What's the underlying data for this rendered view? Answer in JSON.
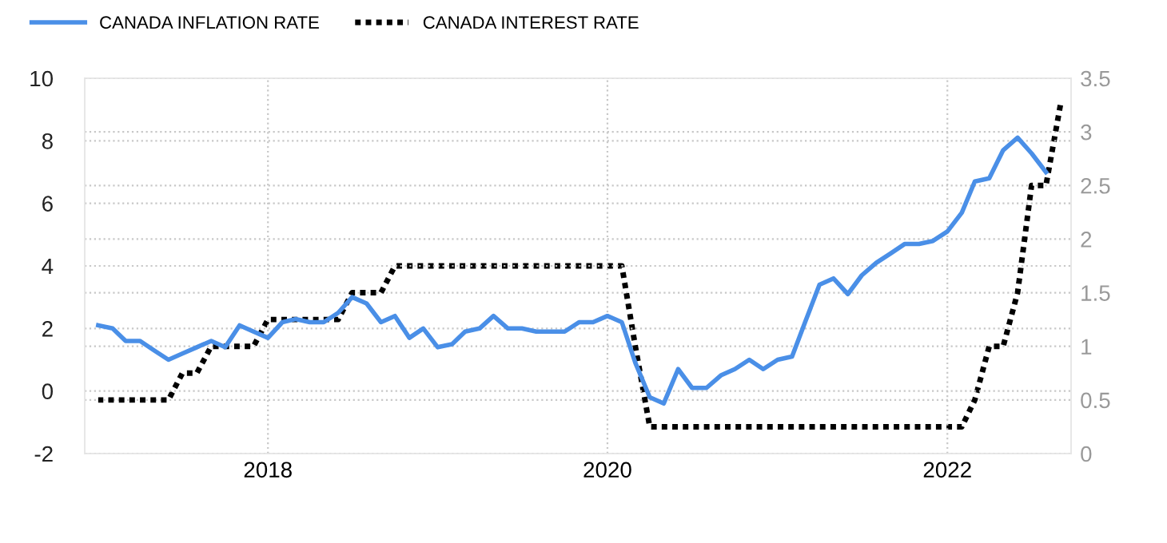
{
  "chart_data": {
    "type": "line",
    "xlim": [
      "2016-12-03",
      "2022-09-24"
    ],
    "xticks": [
      {
        "value": "2018-01-01",
        "label": "2018"
      },
      {
        "value": "2020-01-01",
        "label": "2020"
      },
      {
        "value": "2022-01-01",
        "label": "2022"
      }
    ],
    "ylim": [
      -2,
      10
    ],
    "yticks": [
      -2,
      0,
      2,
      4,
      6,
      8,
      10
    ],
    "y2lim": [
      0,
      3.5
    ],
    "y2ticks": [
      0,
      0.5,
      1,
      1.5,
      2,
      2.5,
      3,
      3.5
    ],
    "grid": true,
    "legend": "top left",
    "marker": "none",
    "series": [
      {
        "name": "CANADA INFLATION RATE",
        "color": "#4a8fe7",
        "line_style": "solid",
        "x": [
          "2017-01",
          "2017-02",
          "2017-03",
          "2017-04",
          "2017-05",
          "2017-06",
          "2017-07",
          "2017-08",
          "2017-09",
          "2017-10",
          "2017-11",
          "2017-12",
          "2018-01",
          "2018-02",
          "2018-03",
          "2018-04",
          "2018-05",
          "2018-06",
          "2018-07",
          "2018-08",
          "2018-09",
          "2018-10",
          "2018-11",
          "2018-12",
          "2019-01",
          "2019-02",
          "2019-03",
          "2019-04",
          "2019-05",
          "2019-06",
          "2019-07",
          "2019-08",
          "2019-09",
          "2019-10",
          "2019-11",
          "2019-12",
          "2020-01",
          "2020-02",
          "2020-03",
          "2020-04",
          "2020-05",
          "2020-06",
          "2020-07",
          "2020-08",
          "2020-09",
          "2020-10",
          "2020-11",
          "2020-12",
          "2021-01",
          "2021-02",
          "2021-03",
          "2021-04",
          "2021-05",
          "2021-06",
          "2021-07",
          "2021-08",
          "2021-09",
          "2021-10",
          "2021-11",
          "2021-12",
          "2022-01",
          "2022-02",
          "2022-03",
          "2022-04",
          "2022-05",
          "2022-06",
          "2022-07",
          "2022-08"
        ],
        "values": [
          2.1,
          2.0,
          1.6,
          1.6,
          1.3,
          1.0,
          1.2,
          1.4,
          1.6,
          1.4,
          2.1,
          1.9,
          1.7,
          2.2,
          2.3,
          2.2,
          2.2,
          2.5,
          3.0,
          2.8,
          2.2,
          2.4,
          1.7,
          2.0,
          1.4,
          1.5,
          1.9,
          2.0,
          2.4,
          2.0,
          2.0,
          1.9,
          1.9,
          1.9,
          2.2,
          2.2,
          2.4,
          2.2,
          0.9,
          -0.2,
          -0.4,
          0.7,
          0.1,
          0.1,
          0.5,
          0.7,
          1.0,
          0.7,
          1.0,
          1.1,
          2.2,
          3.4,
          3.6,
          3.1,
          3.7,
          4.1,
          4.4,
          4.7,
          4.7,
          4.8,
          5.1,
          5.7,
          6.7,
          6.8,
          7.7,
          8.1,
          7.6,
          7.0
        ]
      },
      {
        "name": "CANADA INTEREST RATE",
        "color": "#000000",
        "line_style": "dotted",
        "axis": "y2",
        "x": [
          "2017-01",
          "2017-02",
          "2017-03",
          "2017-04",
          "2017-05",
          "2017-06",
          "2017-07",
          "2017-08",
          "2017-09",
          "2017-10",
          "2017-11",
          "2017-12",
          "2018-01",
          "2018-02",
          "2018-03",
          "2018-04",
          "2018-05",
          "2018-06",
          "2018-07",
          "2018-08",
          "2018-09",
          "2018-10",
          "2018-11",
          "2018-12",
          "2019-01",
          "2019-02",
          "2019-03",
          "2019-04",
          "2019-05",
          "2019-06",
          "2019-07",
          "2019-08",
          "2019-09",
          "2019-10",
          "2019-11",
          "2019-12",
          "2020-01",
          "2020-02",
          "2020-03",
          "2020-04",
          "2020-05",
          "2020-06",
          "2020-07",
          "2020-08",
          "2020-09",
          "2020-10",
          "2020-11",
          "2020-12",
          "2021-01",
          "2021-02",
          "2021-03",
          "2021-04",
          "2021-05",
          "2021-06",
          "2021-07",
          "2021-08",
          "2021-09",
          "2021-10",
          "2021-11",
          "2021-12",
          "2022-01",
          "2022-02",
          "2022-03",
          "2022-04",
          "2022-05",
          "2022-06",
          "2022-07",
          "2022-08",
          "2022-09"
        ],
        "values": [
          0.5,
          0.5,
          0.5,
          0.5,
          0.5,
          0.5,
          0.75,
          0.75,
          1.0,
          1.0,
          1.0,
          1.0,
          1.25,
          1.25,
          1.25,
          1.25,
          1.25,
          1.25,
          1.5,
          1.5,
          1.5,
          1.75,
          1.75,
          1.75,
          1.75,
          1.75,
          1.75,
          1.75,
          1.75,
          1.75,
          1.75,
          1.75,
          1.75,
          1.75,
          1.75,
          1.75,
          1.75,
          1.75,
          1.0,
          0.25,
          0.25,
          0.25,
          0.25,
          0.25,
          0.25,
          0.25,
          0.25,
          0.25,
          0.25,
          0.25,
          0.25,
          0.25,
          0.25,
          0.25,
          0.25,
          0.25,
          0.25,
          0.25,
          0.25,
          0.25,
          0.25,
          0.25,
          0.5,
          1.0,
          1.0,
          1.5,
          2.5,
          2.5,
          3.25
        ]
      }
    ]
  }
}
